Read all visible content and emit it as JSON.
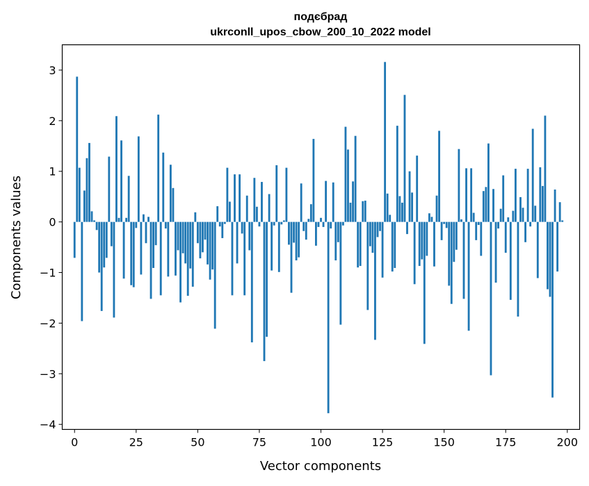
{
  "chart_data": {
    "type": "bar",
    "title_line1": "подєбрад",
    "title_line2": "ukrconll_upos_cbow_200_10_2022 model",
    "xlabel": "Vector components",
    "ylabel": "Components values",
    "xlim": [
      -5,
      205
    ],
    "ylim": [
      -4.1,
      3.5
    ],
    "xticks": [
      0,
      25,
      50,
      75,
      100,
      125,
      150,
      175,
      200
    ],
    "yticks": [
      -4,
      -3,
      -2,
      -1,
      0,
      1,
      2,
      3
    ],
    "xtick_labels": [
      "0",
      "25",
      "50",
      "75",
      "100",
      "125",
      "150",
      "175",
      "200"
    ],
    "ytick_labels": [
      "−4",
      "−3",
      "−2",
      "−1",
      "0",
      "1",
      "2",
      "3"
    ],
    "grid": false,
    "bar_color": "#1f77b4",
    "values": [
      -0.71,
      2.87,
      1.07,
      -1.96,
      0.62,
      1.26,
      1.56,
      0.21,
      0.03,
      -0.16,
      -1.0,
      -1.76,
      -0.9,
      -0.71,
      1.29,
      -0.48,
      -1.89,
      2.09,
      0.08,
      1.61,
      -1.12,
      0.08,
      0.91,
      -1.25,
      -1.29,
      -0.12,
      1.69,
      -1.04,
      0.15,
      -0.42,
      0.1,
      -1.52,
      -0.91,
      -0.46,
      2.12,
      -1.45,
      1.37,
      -0.13,
      -1.08,
      1.13,
      0.67,
      -1.06,
      -0.56,
      -1.59,
      -0.62,
      -0.82,
      -1.46,
      -0.92,
      -1.28,
      0.19,
      -0.42,
      -0.72,
      -0.6,
      -0.35,
      -0.84,
      -1.14,
      -0.94,
      -2.11,
      0.31,
      -0.09,
      -0.32,
      -0.04,
      1.07,
      0.4,
      -1.45,
      0.94,
      -0.82,
      0.94,
      -0.23,
      -1.45,
      0.52,
      -0.56,
      -2.38,
      0.87,
      0.3,
      -0.09,
      0.79,
      -2.75,
      -2.27,
      0.55,
      -0.96,
      -0.07,
      1.12,
      -0.99,
      -0.05,
      0.03,
      1.07,
      -0.45,
      -1.4,
      -0.41,
      -0.76,
      -0.7,
      0.76,
      -0.18,
      -0.35,
      0.06,
      0.35,
      1.64,
      -0.47,
      -0.1,
      0.08,
      -0.1,
      0.81,
      -3.78,
      -0.13,
      0.78,
      -0.76,
      -0.4,
      -2.03,
      -0.07,
      1.88,
      1.43,
      0.38,
      0.8,
      1.7,
      -0.9,
      -0.87,
      0.41,
      0.42,
      -1.74,
      -0.48,
      -0.61,
      -2.33,
      -0.3,
      -0.18,
      -1.1,
      3.16,
      0.56,
      0.14,
      -0.98,
      -0.91,
      1.9,
      0.51,
      0.38,
      2.51,
      -0.24,
      1.0,
      0.58,
      -1.23,
      1.31,
      -0.87,
      -0.74,
      -2.41,
      -0.67,
      0.17,
      0.1,
      -0.88,
      0.52,
      1.8,
      -0.36,
      -0.04,
      -0.12,
      -1.26,
      -1.62,
      -0.79,
      -0.55,
      1.44,
      0.05,
      -1.52,
      1.06,
      -2.15,
      1.06,
      0.18,
      -0.36,
      -0.06,
      -0.67,
      0.61,
      0.69,
      1.55,
      -3.03,
      0.65,
      -1.2,
      -0.13,
      0.26,
      0.92,
      -0.61,
      0.09,
      -1.54,
      0.22,
      1.05,
      -1.87,
      0.49,
      0.28,
      -0.4,
      1.05,
      -0.09,
      1.84,
      0.32,
      -1.11,
      1.08,
      0.71,
      2.1,
      -1.33,
      -1.48,
      -3.47,
      0.64,
      -0.98,
      0.39,
      0.03
    ]
  }
}
